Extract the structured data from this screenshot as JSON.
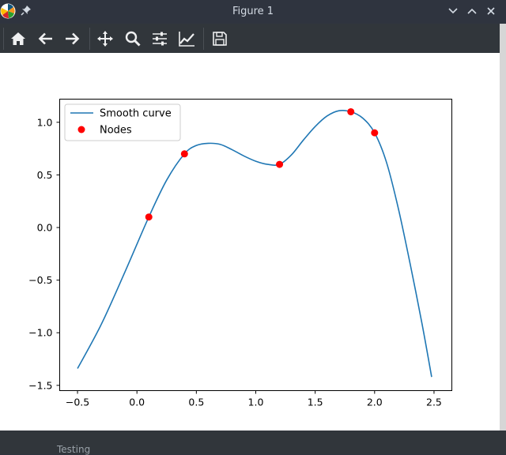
{
  "window": {
    "title": "Figure 1",
    "app_icon": "matplotlib-logo-icon",
    "pin_icon": "pin-icon",
    "controls": [
      "minimize-icon",
      "maximize-icon",
      "close-icon"
    ]
  },
  "toolbar": {
    "buttons": [
      {
        "name": "home-button",
        "icon": "home-icon"
      },
      {
        "name": "back-button",
        "icon": "arrow-left-icon"
      },
      {
        "name": "forward-button",
        "icon": "arrow-right-icon"
      },
      {
        "name": "pan-button",
        "icon": "move-icon"
      },
      {
        "name": "zoom-button",
        "icon": "magnifier-icon"
      },
      {
        "name": "subplots-button",
        "icon": "sliders-icon"
      },
      {
        "name": "edit-axes-button",
        "icon": "line-chart-icon"
      },
      {
        "name": "save-button",
        "icon": "floppy-disk-icon"
      }
    ]
  },
  "status_behind": "Testing",
  "chart_data": {
    "type": "line",
    "title": "",
    "xlabel": "",
    "ylabel": "",
    "xlim": [
      -0.65,
      2.65
    ],
    "ylim": [
      -1.55,
      1.22
    ],
    "x_ticks": [
      -0.5,
      0.0,
      0.5,
      1.0,
      1.5,
      2.0,
      2.5
    ],
    "x_tick_labels": [
      "−0.5",
      "0.0",
      "0.5",
      "1.0",
      "1.5",
      "2.0",
      "2.5"
    ],
    "y_ticks": [
      -1.5,
      -1.0,
      -0.5,
      0.0,
      0.5,
      1.0
    ],
    "y_tick_labels": [
      "−1.5",
      "−1.0",
      "−0.5",
      "0.0",
      "0.5",
      "1.0"
    ],
    "grid": false,
    "legend": {
      "position": "top-left",
      "entries": [
        {
          "label": "Smooth curve",
          "marker": "line",
          "color": "#1f77b4"
        },
        {
          "label": "Nodes",
          "marker": "dot",
          "color": "#ff0000"
        }
      ]
    },
    "series": [
      {
        "name": "Smooth curve",
        "color": "#1f77b4",
        "style": "line",
        "x": [
          -0.5,
          -0.3,
          -0.1,
          0.1,
          0.25,
          0.4,
          0.5,
          0.6,
          0.7,
          0.8,
          0.9,
          1.0,
          1.1,
          1.2,
          1.3,
          1.4,
          1.5,
          1.6,
          1.7,
          1.8,
          1.9,
          2.0,
          2.1,
          2.2,
          2.3,
          2.4,
          2.48
        ],
        "y": [
          -1.34,
          -0.92,
          -0.42,
          0.1,
          0.45,
          0.7,
          0.78,
          0.8,
          0.79,
          0.74,
          0.68,
          0.63,
          0.6,
          0.6,
          0.69,
          0.83,
          0.96,
          1.06,
          1.11,
          1.1,
          1.04,
          0.9,
          0.62,
          0.18,
          -0.35,
          -0.92,
          -1.42
        ]
      },
      {
        "name": "Nodes",
        "color": "#ff0000",
        "style": "scatter",
        "x": [
          0.1,
          0.4,
          1.2,
          1.8,
          2.0
        ],
        "y": [
          0.1,
          0.7,
          0.6,
          1.1,
          0.9
        ]
      }
    ]
  }
}
